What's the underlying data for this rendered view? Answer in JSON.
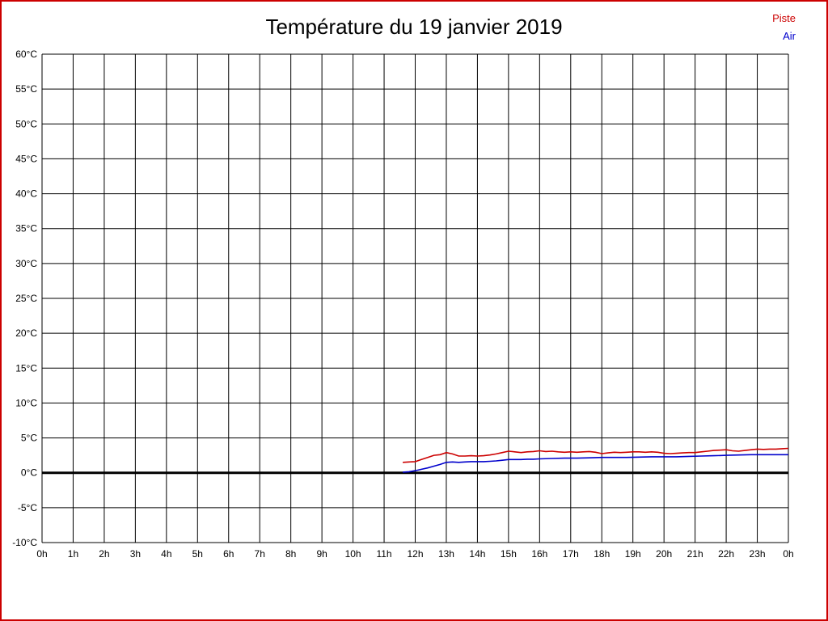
{
  "chart_data": {
    "type": "line",
    "title": "Température du 19 janvier 2019",
    "xlabel": "",
    "ylabel": "",
    "xlim": [
      0,
      24
    ],
    "ylim": [
      -10,
      60
    ],
    "x_grid_step": 1,
    "y_grid_step": 5,
    "grid": true,
    "grid_color": "#000000",
    "y_tick_suffix": "°C",
    "x_tick_labels": [
      "0h",
      "1h",
      "2h",
      "3h",
      "4h",
      "5h",
      "6h",
      "7h",
      "8h",
      "9h",
      "10h",
      "11h",
      "12h",
      "13h",
      "14h",
      "15h",
      "16h",
      "17h",
      "18h",
      "19h",
      "20h",
      "21h",
      "22h",
      "23h",
      "0h"
    ],
    "zero_line": {
      "value": 0,
      "color": "#000000",
      "width": 3
    },
    "legend_position": "top-right",
    "series": [
      {
        "name": "Piste",
        "color": "#cc0000",
        "points": [
          [
            11.6,
            1.5
          ],
          [
            11.8,
            1.55
          ],
          [
            12.0,
            1.6
          ],
          [
            12.2,
            1.9
          ],
          [
            12.4,
            2.2
          ],
          [
            12.6,
            2.5
          ],
          [
            12.8,
            2.6
          ],
          [
            13.0,
            2.9
          ],
          [
            13.2,
            2.7
          ],
          [
            13.4,
            2.4
          ],
          [
            13.6,
            2.4
          ],
          [
            13.8,
            2.45
          ],
          [
            14.0,
            2.4
          ],
          [
            14.2,
            2.45
          ],
          [
            14.4,
            2.55
          ],
          [
            14.6,
            2.7
          ],
          [
            14.8,
            2.9
          ],
          [
            15.0,
            3.1
          ],
          [
            15.2,
            3.0
          ],
          [
            15.4,
            2.9
          ],
          [
            15.6,
            3.0
          ],
          [
            15.8,
            3.05
          ],
          [
            16.0,
            3.15
          ],
          [
            16.2,
            3.05
          ],
          [
            16.4,
            3.1
          ],
          [
            16.6,
            3.0
          ],
          [
            16.8,
            2.95
          ],
          [
            17.0,
            3.0
          ],
          [
            17.2,
            2.95
          ],
          [
            17.4,
            3.0
          ],
          [
            17.6,
            3.05
          ],
          [
            17.8,
            2.95
          ],
          [
            18.0,
            2.75
          ],
          [
            18.2,
            2.85
          ],
          [
            18.4,
            2.95
          ],
          [
            18.6,
            2.9
          ],
          [
            18.8,
            2.95
          ],
          [
            19.0,
            3.0
          ],
          [
            19.2,
            3.0
          ],
          [
            19.4,
            2.95
          ],
          [
            19.6,
            3.0
          ],
          [
            19.8,
            2.95
          ],
          [
            20.0,
            2.8
          ],
          [
            20.2,
            2.75
          ],
          [
            20.4,
            2.8
          ],
          [
            20.6,
            2.85
          ],
          [
            20.8,
            2.9
          ],
          [
            21.0,
            2.9
          ],
          [
            21.2,
            3.0
          ],
          [
            21.4,
            3.1
          ],
          [
            21.6,
            3.2
          ],
          [
            21.8,
            3.25
          ],
          [
            22.0,
            3.3
          ],
          [
            22.2,
            3.15
          ],
          [
            22.4,
            3.1
          ],
          [
            22.6,
            3.2
          ],
          [
            22.8,
            3.3
          ],
          [
            23.0,
            3.4
          ],
          [
            23.2,
            3.35
          ],
          [
            23.4,
            3.4
          ],
          [
            23.6,
            3.4
          ],
          [
            23.8,
            3.45
          ],
          [
            24.0,
            3.5
          ]
        ]
      },
      {
        "name": "Air",
        "color": "#0000cc",
        "points": [
          [
            11.6,
            0.1
          ],
          [
            11.8,
            0.15
          ],
          [
            12.0,
            0.3
          ],
          [
            12.2,
            0.5
          ],
          [
            12.4,
            0.7
          ],
          [
            12.6,
            0.95
          ],
          [
            12.8,
            1.2
          ],
          [
            13.0,
            1.5
          ],
          [
            13.2,
            1.55
          ],
          [
            13.4,
            1.5
          ],
          [
            13.6,
            1.55
          ],
          [
            13.8,
            1.6
          ],
          [
            14.0,
            1.6
          ],
          [
            14.2,
            1.6
          ],
          [
            14.4,
            1.65
          ],
          [
            14.6,
            1.7
          ],
          [
            14.8,
            1.8
          ],
          [
            15.0,
            1.9
          ],
          [
            15.2,
            1.9
          ],
          [
            15.4,
            1.9
          ],
          [
            15.6,
            1.95
          ],
          [
            15.8,
            1.95
          ],
          [
            16.0,
            2.0
          ],
          [
            16.4,
            2.05
          ],
          [
            16.8,
            2.1
          ],
          [
            17.2,
            2.1
          ],
          [
            17.6,
            2.15
          ],
          [
            18.0,
            2.2
          ],
          [
            18.4,
            2.2
          ],
          [
            18.8,
            2.2
          ],
          [
            19.2,
            2.25
          ],
          [
            19.6,
            2.3
          ],
          [
            20.0,
            2.3
          ],
          [
            20.4,
            2.3
          ],
          [
            20.8,
            2.35
          ],
          [
            21.2,
            2.4
          ],
          [
            21.6,
            2.45
          ],
          [
            22.0,
            2.5
          ],
          [
            22.4,
            2.55
          ],
          [
            22.8,
            2.6
          ],
          [
            23.2,
            2.6
          ],
          [
            23.6,
            2.6
          ],
          [
            24.0,
            2.6
          ]
        ]
      }
    ]
  }
}
